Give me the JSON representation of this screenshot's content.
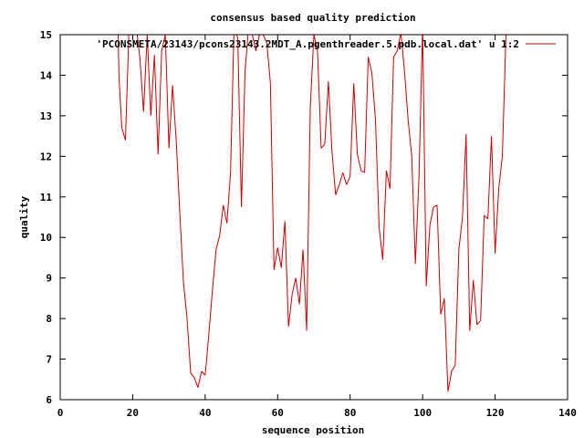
{
  "chart_data": {
    "type": "line",
    "title": "consensus based quality prediction",
    "xlabel": "sequence position",
    "ylabel": "quality",
    "xlim": [
      0,
      140
    ],
    "ylim": [
      6,
      15
    ],
    "xticks": [
      0,
      20,
      40,
      60,
      80,
      100,
      120,
      140
    ],
    "yticks": [
      6,
      7,
      8,
      9,
      10,
      11,
      12,
      13,
      14,
      15
    ],
    "grid": false,
    "legend_position": "top-right",
    "series": [
      {
        "name": "'PCONSMETA/23143/pcons23143.2MDT_A.pgenthreader.5.pdb.local.dat' u 1:2",
        "color": "#cc0000",
        "points": [
          [
            16,
            15.0
          ],
          [
            16.2,
            14.0
          ],
          [
            17,
            12.7
          ],
          [
            18,
            12.4
          ],
          [
            19,
            15.2
          ],
          [
            20,
            15.0
          ],
          [
            21,
            15.2
          ],
          [
            22,
            14.4
          ],
          [
            23,
            13.1
          ],
          [
            24,
            15.0
          ],
          [
            25,
            13.0
          ],
          [
            26,
            14.5
          ],
          [
            27,
            12.05
          ],
          [
            28,
            14.6
          ],
          [
            29,
            15.0
          ],
          [
            30,
            12.2
          ],
          [
            31,
            13.75
          ],
          [
            32,
            12.4
          ],
          [
            33,
            10.6
          ],
          [
            34,
            8.9
          ],
          [
            35,
            8.0
          ],
          [
            36,
            6.65
          ],
          [
            37,
            6.55
          ],
          [
            38,
            6.3
          ],
          [
            39,
            6.7
          ],
          [
            40,
            6.6
          ],
          [
            41,
            7.6
          ],
          [
            42,
            8.7
          ],
          [
            43,
            9.7
          ],
          [
            44,
            10.05
          ],
          [
            45,
            10.8
          ],
          [
            46,
            10.35
          ],
          [
            47,
            11.6
          ],
          [
            48,
            15.3
          ],
          [
            49,
            14.9
          ],
          [
            50,
            10.75
          ],
          [
            51,
            14.1
          ],
          [
            52,
            15.2
          ],
          [
            53,
            15.0
          ],
          [
            54,
            14.6
          ],
          [
            55,
            15.0
          ],
          [
            56,
            15.0
          ],
          [
            57,
            14.8
          ],
          [
            58,
            13.8
          ],
          [
            59,
            9.2
          ],
          [
            60,
            9.75
          ],
          [
            61,
            9.25
          ],
          [
            62,
            10.4
          ],
          [
            63,
            7.8
          ],
          [
            64,
            8.6
          ],
          [
            65,
            9.0
          ],
          [
            66,
            8.35
          ],
          [
            67,
            9.7
          ],
          [
            68,
            7.7
          ],
          [
            69,
            13.2
          ],
          [
            70,
            15.0
          ],
          [
            71,
            14.6
          ],
          [
            72,
            12.2
          ],
          [
            73,
            12.3
          ],
          [
            74,
            13.85
          ],
          [
            75,
            12.1
          ],
          [
            76,
            11.05
          ],
          [
            77,
            11.3
          ],
          [
            78,
            11.6
          ],
          [
            79,
            11.3
          ],
          [
            80,
            11.5
          ],
          [
            81,
            13.8
          ],
          [
            82,
            12.05
          ],
          [
            83,
            11.65
          ],
          [
            84,
            11.6
          ],
          [
            85,
            14.45
          ],
          [
            86,
            14.05
          ],
          [
            87,
            12.9
          ],
          [
            88,
            10.25
          ],
          [
            89,
            9.45
          ],
          [
            90,
            11.65
          ],
          [
            91,
            11.2
          ],
          [
            92,
            14.45
          ],
          [
            93,
            14.6
          ],
          [
            94,
            15.05
          ],
          [
            95,
            14.1
          ],
          [
            96,
            12.9
          ],
          [
            97,
            12.0
          ],
          [
            98,
            9.35
          ],
          [
            99,
            11.5
          ],
          [
            100,
            15.2
          ],
          [
            101,
            8.8
          ],
          [
            102,
            10.3
          ],
          [
            103,
            10.75
          ],
          [
            104,
            10.8
          ],
          [
            105,
            8.1
          ],
          [
            106,
            8.5
          ],
          [
            107,
            6.2
          ],
          [
            108,
            6.7
          ],
          [
            109,
            6.85
          ],
          [
            110,
            9.7
          ],
          [
            111,
            10.5
          ],
          [
            112,
            12.55
          ],
          [
            113,
            7.7
          ],
          [
            114,
            8.95
          ],
          [
            115,
            7.85
          ],
          [
            116,
            7.95
          ],
          [
            117,
            10.55
          ],
          [
            118,
            10.45
          ],
          [
            119,
            12.5
          ],
          [
            120,
            9.6
          ],
          [
            121,
            11.2
          ],
          [
            122,
            12.0
          ],
          [
            123,
            15.0
          ]
        ]
      }
    ]
  }
}
